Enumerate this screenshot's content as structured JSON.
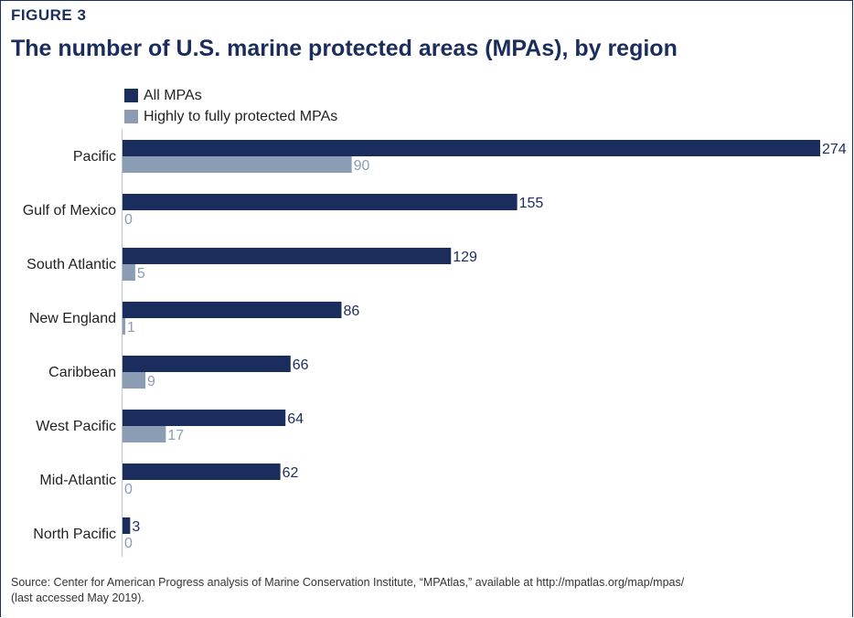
{
  "figure_label": "FIGURE 3",
  "title": "The number of U.S. marine protected areas (MPAs), by region",
  "source_line1": "Source: Center for American Progress analysis of Marine Conservation Institute, “MPAtlas,” available at http://mpatlas.org/map/mpas/",
  "source_line2": "(last accessed May 2019).",
  "colors": {
    "all": "#1b2d5c",
    "protected": "#8a9db5",
    "title": "#1b2d5c"
  },
  "chart_data": {
    "type": "bar",
    "orientation": "horizontal",
    "categories": [
      "Pacific",
      "Gulf of Mexico",
      "South Atlantic",
      "New England",
      "Caribbean",
      "West Pacific",
      "Mid-Atlantic",
      "North Pacific"
    ],
    "series": [
      {
        "name": "All MPAs",
        "color": "#1b2d5c",
        "values": [
          274,
          155,
          129,
          86,
          66,
          64,
          62,
          3
        ]
      },
      {
        "name": "Highly to fully protected MPAs",
        "color": "#8a9db5",
        "values": [
          90,
          0,
          5,
          1,
          9,
          17,
          0,
          0
        ]
      }
    ],
    "xlim": [
      0,
      274
    ],
    "grid": false,
    "legend_position": "top-left",
    "data_labels": true
  }
}
